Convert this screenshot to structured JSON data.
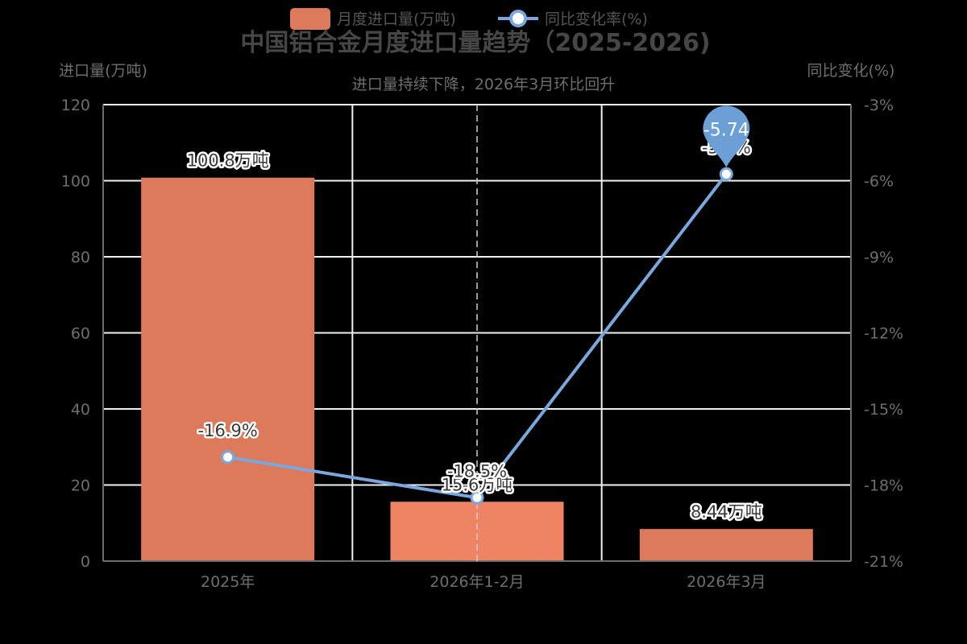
{
  "chart_data": {
    "type": "bar+line",
    "title": "中国铝合金月度进口量趋势（2025-2026)",
    "subtitle": "进口量持续下降，2026年3月环比回升",
    "categories": [
      "2025年",
      "2026年1-2月",
      "2026年3月"
    ],
    "series": [
      {
        "name": "月度进口量(万吨)",
        "type": "bar",
        "axis": "left",
        "values": [
          100.8,
          15.6,
          8.44
        ],
        "labels": [
          "100.8万吨",
          "15.6万吨",
          "8.44万吨"
        ],
        "color": "#dd7a5c",
        "highlight_color": "#ef8464"
      },
      {
        "name": "同比变化率(%)",
        "type": "line",
        "axis": "right",
        "values": [
          -16.9,
          -18.5,
          -5.74
        ],
        "labels": [
          "-16.9%",
          "-18.5%",
          "-5.7%"
        ],
        "color": "#78a8de",
        "max_pin": {
          "label": "-5.74",
          "color": "#6c9fd6"
        }
      }
    ],
    "ylabel": "进口量(万吨)",
    "y2label": "同比变化(%)",
    "ylim": [
      0,
      120
    ],
    "y2lim": [
      -21,
      -3
    ],
    "yticks": [
      "0",
      "20",
      "40",
      "60",
      "80",
      "100",
      "120"
    ],
    "y2ticks": [
      "-21%",
      "-18%",
      "-15%",
      "-12%",
      "-9%",
      "-6%",
      "-3%"
    ],
    "grid": true,
    "legend_position": "top",
    "hovered_category": "2026年1-2月"
  },
  "legend": {
    "items": [
      {
        "label": "月度进口量(万吨)",
        "color": "#dd7a5c"
      },
      {
        "label": "同比变化率(%)",
        "color": "#78a8de"
      }
    ]
  }
}
